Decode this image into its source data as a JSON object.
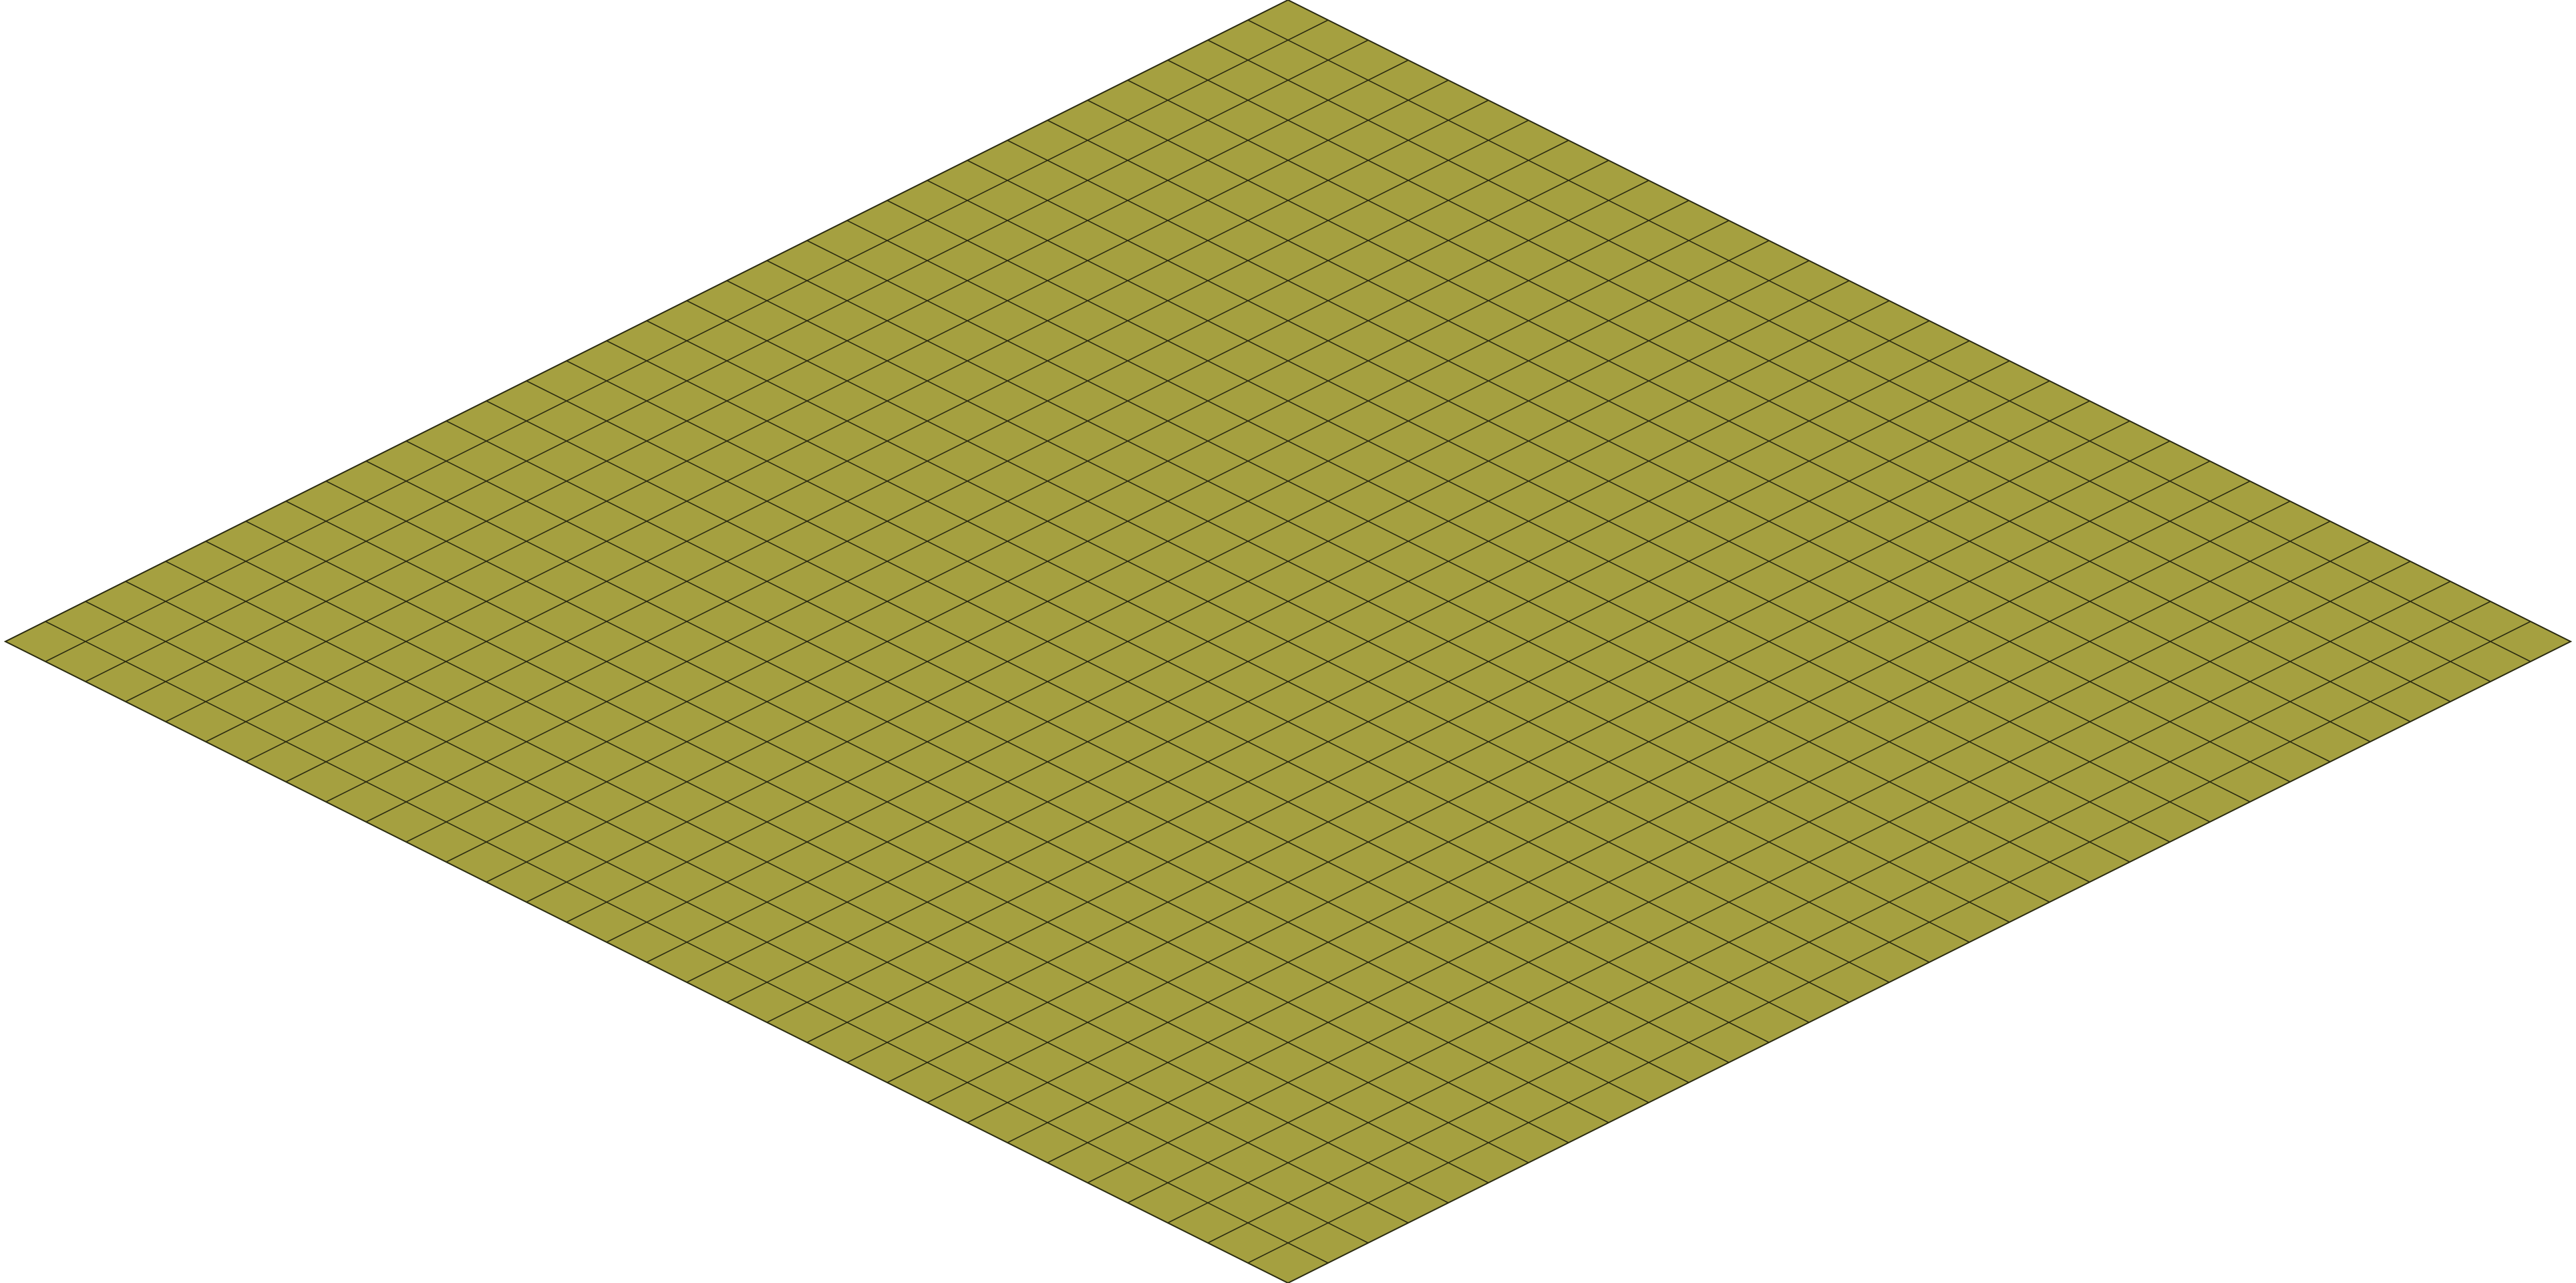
{
  "board": {
    "rows": 32,
    "cols": 32,
    "tile_color": "#a5a040",
    "grid_line_color": "#2a2a10",
    "background_color": "#ffffff"
  }
}
